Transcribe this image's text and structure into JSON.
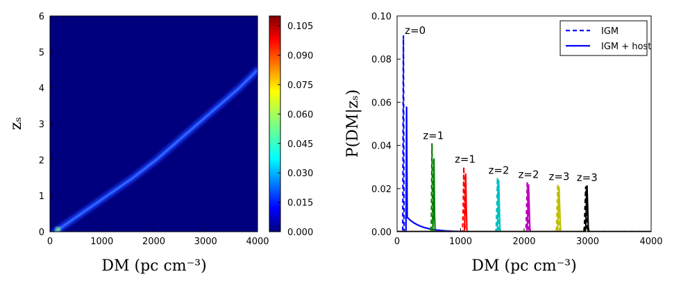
{
  "chart_data": [
    {
      "type": "heatmap",
      "xlabel": "DM (pc cm⁻³)",
      "ylabel": "zₛ",
      "xlim": [
        0,
        4000
      ],
      "ylim": [
        0,
        6
      ],
      "xticks": [
        "0",
        "1000",
        "2000",
        "3000",
        "4000"
      ],
      "yticks": [
        "0",
        "1",
        "2",
        "3",
        "4",
        "5",
        "6"
      ],
      "colorbar": {
        "ticks": [
          "0.000",
          "0.015",
          "0.030",
          "0.045",
          "0.060",
          "0.075",
          "0.090",
          "0.105"
        ],
        "range": [
          0,
          0.11
        ],
        "colormap": "jet"
      },
      "ridge": {
        "description": "peak of P(DM|z_s)",
        "z": [
          0,
          0.5,
          1,
          1.5,
          2,
          2.5,
          3,
          3.5,
          4,
          4.5
        ],
        "dm": [
          100,
          600,
          1100,
          1600,
          2050,
          2450,
          2850,
          3250,
          3650,
          4000
        ]
      }
    },
    {
      "type": "line",
      "xlabel": "DM (pc cm⁻³)",
      "ylabel": "P(DM|zₛ)",
      "xlim": [
        0,
        4000
      ],
      "ylim": [
        0,
        0.1
      ],
      "xticks": [
        "0",
        "1000",
        "2000",
        "3000",
        "4000"
      ],
      "yticks": [
        "0.00",
        "0.02",
        "0.04",
        "0.06",
        "0.08",
        "0.10"
      ],
      "legend": {
        "location": "top-right",
        "entries": [
          "IGM",
          "IGM + host"
        ]
      },
      "series": [
        {
          "label": "z=0",
          "color": "#0000ff",
          "igm_peak_dm": 100,
          "igm_peak": 0.091,
          "host_peak_dm": 150,
          "host_peak": 0.058
        },
        {
          "label": "z=1",
          "color": "#008000",
          "igm_peak_dm": 550,
          "igm_peak": 0.041,
          "host_peak_dm": 580,
          "host_peak": 0.034
        },
        {
          "label": "z=1",
          "color": "#ff0000",
          "igm_peak_dm": 1050,
          "igm_peak": 0.03,
          "host_peak_dm": 1080,
          "host_peak": 0.027
        },
        {
          "label": "z=2",
          "color": "#00bfbf",
          "igm_peak_dm": 1580,
          "igm_peak": 0.025,
          "host_peak_dm": 1600,
          "host_peak": 0.024
        },
        {
          "label": "z=2",
          "color": "#bf00bf",
          "igm_peak_dm": 2050,
          "igm_peak": 0.023,
          "host_peak_dm": 2070,
          "host_peak": 0.022
        },
        {
          "label": "z=3",
          "color": "#bfbf00",
          "igm_peak_dm": 2530,
          "igm_peak": 0.022,
          "host_peak_dm": 2550,
          "host_peak": 0.021
        },
        {
          "label": "z=3",
          "color": "#000000",
          "igm_peak_dm": 2970,
          "igm_peak": 0.021,
          "host_peak_dm": 2990,
          "host_peak": 0.0215
        }
      ]
    }
  ]
}
